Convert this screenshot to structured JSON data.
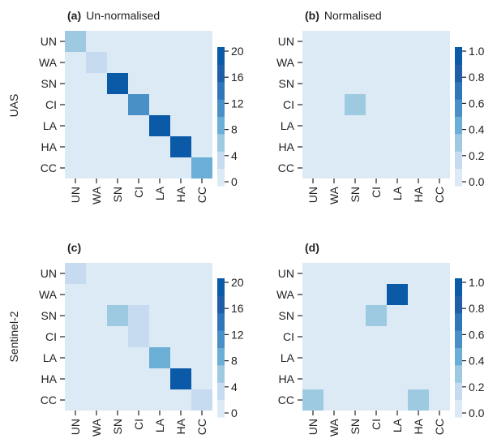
{
  "figure": {
    "row_labels": [
      "UAS",
      "Sentinel-2"
    ]
  },
  "colors": {
    "scale": [
      "#dceaf6",
      "#c6dbef",
      "#9ecae1",
      "#6baed6",
      "#4a90c8",
      "#2f77b8",
      "#1f5fa8",
      "#0b5aa8"
    ]
  },
  "chart_data": [
    {
      "type": "heatmap",
      "panel": "(a)",
      "title": "Un-normalised",
      "ylabel": "UAS",
      "categories": [
        "UN",
        "WA",
        "SN",
        "CI",
        "LA",
        "HA",
        "CC"
      ],
      "values": [
        [
          6,
          0,
          0,
          0,
          0,
          0,
          0
        ],
        [
          0,
          3,
          0,
          0,
          0,
          0,
          0
        ],
        [
          0,
          0,
          20,
          0,
          0,
          0,
          0
        ],
        [
          0,
          0,
          0,
          12,
          0,
          0,
          0
        ],
        [
          0,
          0,
          0,
          0,
          20,
          0,
          0
        ],
        [
          0,
          0,
          0,
          0,
          0,
          20,
          0
        ],
        [
          0,
          0,
          0,
          0,
          0,
          0,
          8
        ]
      ],
      "colorbar": {
        "min": 0,
        "max": 20,
        "ticks": [
          "20",
          "16",
          "12",
          "8",
          "4",
          "0"
        ]
      }
    },
    {
      "type": "heatmap",
      "panel": "(b)",
      "title": "Normalised",
      "ylabel": "",
      "categories": [
        "UN",
        "WA",
        "SN",
        "CI",
        "LA",
        "HA",
        "CC"
      ],
      "values": [
        [
          0,
          0,
          0,
          0,
          0,
          0,
          0
        ],
        [
          0,
          0,
          0,
          0,
          0,
          0,
          0
        ],
        [
          0,
          0,
          0,
          0,
          0,
          0,
          0
        ],
        [
          0,
          0,
          0.25,
          0,
          0,
          0,
          0
        ],
        [
          0,
          0,
          0,
          0,
          0,
          0,
          0
        ],
        [
          0,
          0,
          0,
          0,
          0,
          0,
          0
        ],
        [
          0,
          0,
          0,
          0,
          0,
          0,
          0
        ]
      ],
      "colorbar": {
        "min": 0,
        "max": 1,
        "ticks": [
          "1.0",
          "0.8",
          "0.6",
          "0.4",
          "0.2",
          "0.0"
        ]
      }
    },
    {
      "type": "heatmap",
      "panel": "(c)",
      "title": "",
      "ylabel": "Sentinel-2",
      "categories": [
        "UN",
        "WA",
        "SN",
        "CI",
        "LA",
        "HA",
        "CC"
      ],
      "values": [
        [
          3,
          0,
          0,
          0,
          0,
          0,
          0
        ],
        [
          0,
          0,
          0,
          0,
          0,
          0,
          0
        ],
        [
          0,
          0,
          5,
          3,
          0,
          0,
          0
        ],
        [
          0,
          0,
          0,
          3,
          0,
          0,
          0
        ],
        [
          0,
          0,
          0,
          0,
          8,
          0,
          0
        ],
        [
          0,
          0,
          0,
          0,
          0,
          20,
          0
        ],
        [
          0,
          0,
          0,
          0,
          0,
          0,
          3
        ]
      ],
      "colorbar": {
        "min": 0,
        "max": 20,
        "ticks": [
          "20",
          "16",
          "12",
          "8",
          "4",
          "0"
        ]
      }
    },
    {
      "type": "heatmap",
      "panel": "(d)",
      "title": "",
      "ylabel": "",
      "categories": [
        "UN",
        "WA",
        "SN",
        "CI",
        "LA",
        "HA",
        "CC"
      ],
      "values": [
        [
          0,
          0,
          0,
          0,
          0,
          0,
          0
        ],
        [
          0,
          0,
          0,
          0,
          1.0,
          0,
          0
        ],
        [
          0,
          0,
          0,
          0.25,
          0,
          0,
          0
        ],
        [
          0,
          0,
          0,
          0,
          0,
          0,
          0
        ],
        [
          0,
          0,
          0,
          0,
          0,
          0,
          0
        ],
        [
          0,
          0,
          0,
          0,
          0,
          0,
          0
        ],
        [
          0.25,
          0,
          0,
          0,
          0,
          0.25,
          0
        ]
      ],
      "colorbar": {
        "min": 0,
        "max": 1,
        "ticks": [
          "1.0",
          "0.8",
          "0.6",
          "0.4",
          "0.2",
          "0.0"
        ]
      }
    }
  ]
}
